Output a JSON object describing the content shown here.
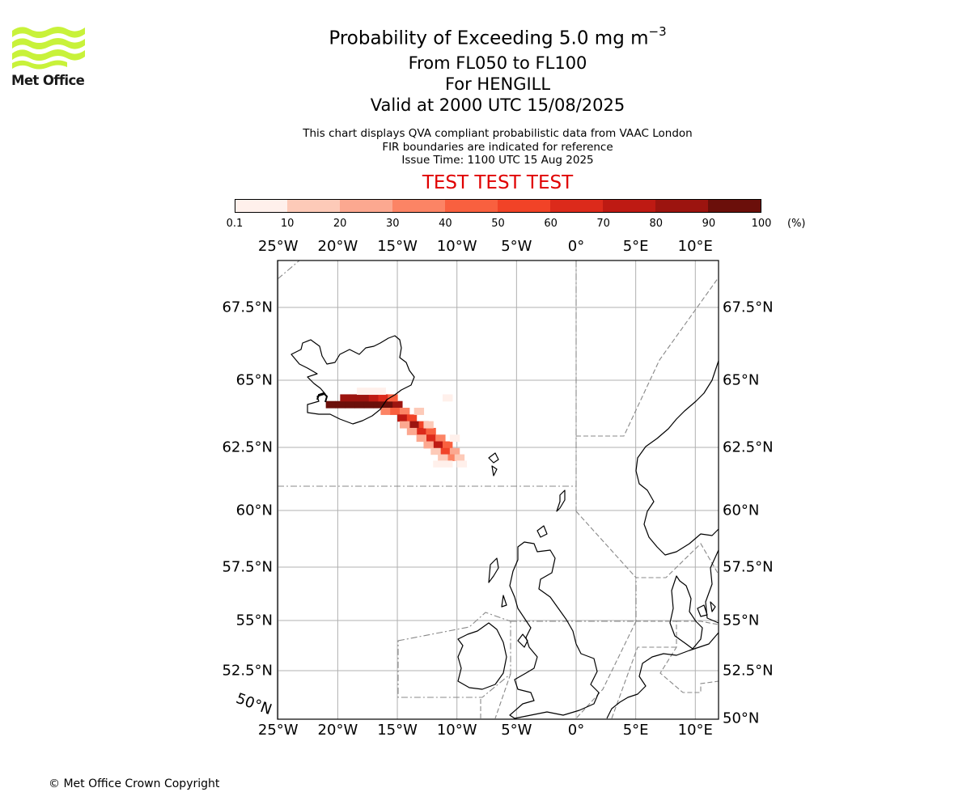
{
  "logo": {
    "text": "Met Office",
    "color": "#c8f23a"
  },
  "title": {
    "main": "Probability of Exceeding 5.0 mg m",
    "main_sup": "−3",
    "levels": "From FL050 to FL100",
    "location": "For HENGILL",
    "valid": "Valid at 2000 UTC 15/08/2025"
  },
  "info": {
    "line1": "This chart displays QVA compliant probabilistic data from VAAC London",
    "line2": "FIR boundaries are indicated for reference",
    "line3": "Issue Time: 1100 UTC 15 Aug 2025"
  },
  "test_banner": {
    "text": "TEST TEST TEST",
    "color": "#e00000"
  },
  "colorbar": {
    "ticks": [
      "0.1",
      "10",
      "20",
      "30",
      "40",
      "50",
      "60",
      "70",
      "80",
      "90",
      "100"
    ],
    "unit": "(%)",
    "colors": [
      "#fff0eb",
      "#fdcab8",
      "#fca890",
      "#fc8465",
      "#f9603f",
      "#f14327",
      "#dc2a1b",
      "#be1a13",
      "#9c140f",
      "#6b0f0a"
    ]
  },
  "axes": {
    "lon_labels": [
      "25°W",
      "20°W",
      "15°W",
      "10°W",
      "5°W",
      "0°",
      "5°E",
      "10°E"
    ],
    "lon_values": [
      -25,
      -20,
      -15,
      -10,
      -5,
      0,
      5,
      10
    ],
    "lat_labels_left": [
      "67.5°N",
      "65°N",
      "62.5°N",
      "60°N",
      "57.5°N",
      "55°N",
      "52.5°N"
    ],
    "lat_labels_right": [
      "67.5°N",
      "65°N",
      "62.5°N",
      "60°N",
      "57.5°N",
      "55°N",
      "52.5°N",
      "50°N"
    ],
    "lat_values_left": [
      67.5,
      65,
      62.5,
      60,
      57.5,
      55,
      52.5
    ],
    "lat_values_right": [
      67.5,
      65,
      62.5,
      60,
      57.5,
      55,
      52.5,
      50
    ],
    "corner_label": "50°N"
  },
  "plume": [
    {
      "lon": -21.0,
      "lat": 64.1,
      "p": 95
    },
    {
      "lon": -20.2,
      "lat": 64.1,
      "p": 95
    },
    {
      "lon": -19.4,
      "lat": 64.1,
      "p": 95
    },
    {
      "lon": -18.6,
      "lat": 64.1,
      "p": 90
    },
    {
      "lon": -17.8,
      "lat": 64.1,
      "p": 95
    },
    {
      "lon": -17.0,
      "lat": 64.1,
      "p": 95
    },
    {
      "lon": -16.2,
      "lat": 64.1,
      "p": 95
    },
    {
      "lon": -15.4,
      "lat": 64.1,
      "p": 85
    },
    {
      "lon": -19.8,
      "lat": 64.35,
      "p": 85
    },
    {
      "lon": -19.0,
      "lat": 64.35,
      "p": 85
    },
    {
      "lon": -18.2,
      "lat": 64.35,
      "p": 80
    },
    {
      "lon": -17.4,
      "lat": 64.35,
      "p": 75
    },
    {
      "lon": -16.6,
      "lat": 64.35,
      "p": 65
    },
    {
      "lon": -15.8,
      "lat": 64.35,
      "p": 45
    },
    {
      "lon": -17.6,
      "lat": 64.6,
      "p": 8
    },
    {
      "lon": -16.8,
      "lat": 64.6,
      "p": 8
    },
    {
      "lon": -18.4,
      "lat": 64.6,
      "p": 5
    },
    {
      "lon": -16.4,
      "lat": 63.85,
      "p": 35
    },
    {
      "lon": -15.6,
      "lat": 63.85,
      "p": 45
    },
    {
      "lon": -14.8,
      "lat": 63.85,
      "p": 35
    },
    {
      "lon": -15.0,
      "lat": 63.6,
      "p": 70
    },
    {
      "lon": -14.2,
      "lat": 63.6,
      "p": 55
    },
    {
      "lon": -14.0,
      "lat": 63.35,
      "p": 80
    },
    {
      "lon": -13.2,
      "lat": 63.35,
      "p": 55
    },
    {
      "lon": -14.8,
      "lat": 63.35,
      "p": 25
    },
    {
      "lon": -13.4,
      "lat": 63.1,
      "p": 65
    },
    {
      "lon": -12.6,
      "lat": 63.1,
      "p": 45
    },
    {
      "lon": -14.2,
      "lat": 63.1,
      "p": 25
    },
    {
      "lon": -12.6,
      "lat": 62.85,
      "p": 65
    },
    {
      "lon": -11.8,
      "lat": 62.85,
      "p": 35
    },
    {
      "lon": -13.4,
      "lat": 62.85,
      "p": 25
    },
    {
      "lon": -12.0,
      "lat": 62.6,
      "p": 75
    },
    {
      "lon": -11.2,
      "lat": 62.6,
      "p": 45
    },
    {
      "lon": -12.8,
      "lat": 62.6,
      "p": 25
    },
    {
      "lon": -11.4,
      "lat": 62.35,
      "p": 55
    },
    {
      "lon": -10.6,
      "lat": 62.35,
      "p": 25
    },
    {
      "lon": -12.2,
      "lat": 62.35,
      "p": 15
    },
    {
      "lon": -10.8,
      "lat": 62.1,
      "p": 35
    },
    {
      "lon": -11.6,
      "lat": 62.1,
      "p": 15
    },
    {
      "lon": -10.2,
      "lat": 62.1,
      "p": 15
    },
    {
      "lon": -11.2,
      "lat": 61.85,
      "p": 5
    },
    {
      "lon": -12.0,
      "lat": 61.85,
      "p": 8
    },
    {
      "lon": -10.0,
      "lat": 61.85,
      "p": 5
    },
    {
      "lon": -11.2,
      "lat": 64.35,
      "p": 5
    },
    {
      "lon": -13.6,
      "lat": 63.85,
      "p": 15
    },
    {
      "lon": -12.8,
      "lat": 63.35,
      "p": 15
    },
    {
      "lon": -10.6,
      "lat": 62.85,
      "p": 8
    }
  ],
  "copyright": "© Met Office Crown Copyright"
}
